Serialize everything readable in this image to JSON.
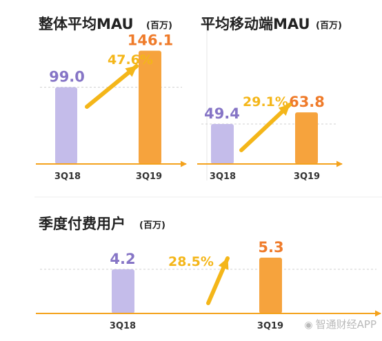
{
  "chart_data": [
    {
      "type": "bar",
      "title": "整体平均MAU",
      "unit": "(百万)",
      "categories": [
        "3Q18",
        "3Q19"
      ],
      "values": [
        99.0,
        146.1
      ],
      "value_labels": [
        "99.0",
        "146.1"
      ],
      "growth_label": "47.6%",
      "ylim": [
        0,
        160
      ]
    },
    {
      "type": "bar",
      "title": "平均移动端MAU",
      "unit": "(百万)",
      "categories": [
        "3Q18",
        "3Q19"
      ],
      "values": [
        49.4,
        63.8
      ],
      "value_labels": [
        "49.4",
        "63.8"
      ],
      "growth_label": "29.1%",
      "ylim": [
        0,
        92
      ]
    },
    {
      "type": "bar",
      "title": "季度付费用户",
      "unit": "(百万)",
      "categories": [
        "3Q18",
        "3Q19"
      ],
      "values": [
        4.2,
        5.3
      ],
      "value_labels": [
        "4.2",
        "5.3"
      ],
      "growth_label": "28.5%",
      "ylim": [
        0,
        7.2
      ]
    }
  ],
  "colors": {
    "bar_previous": "#c4bcea",
    "bar_current": "#f6a33d",
    "label_previous": "#8675c6",
    "label_current": "#ef7b2a",
    "arrow": "#f4b619",
    "axis": "#f4a21c",
    "title": "#222222",
    "tick": "#333333"
  },
  "watermark": "智通财经APP",
  "watermark_icon": "camera-icon"
}
